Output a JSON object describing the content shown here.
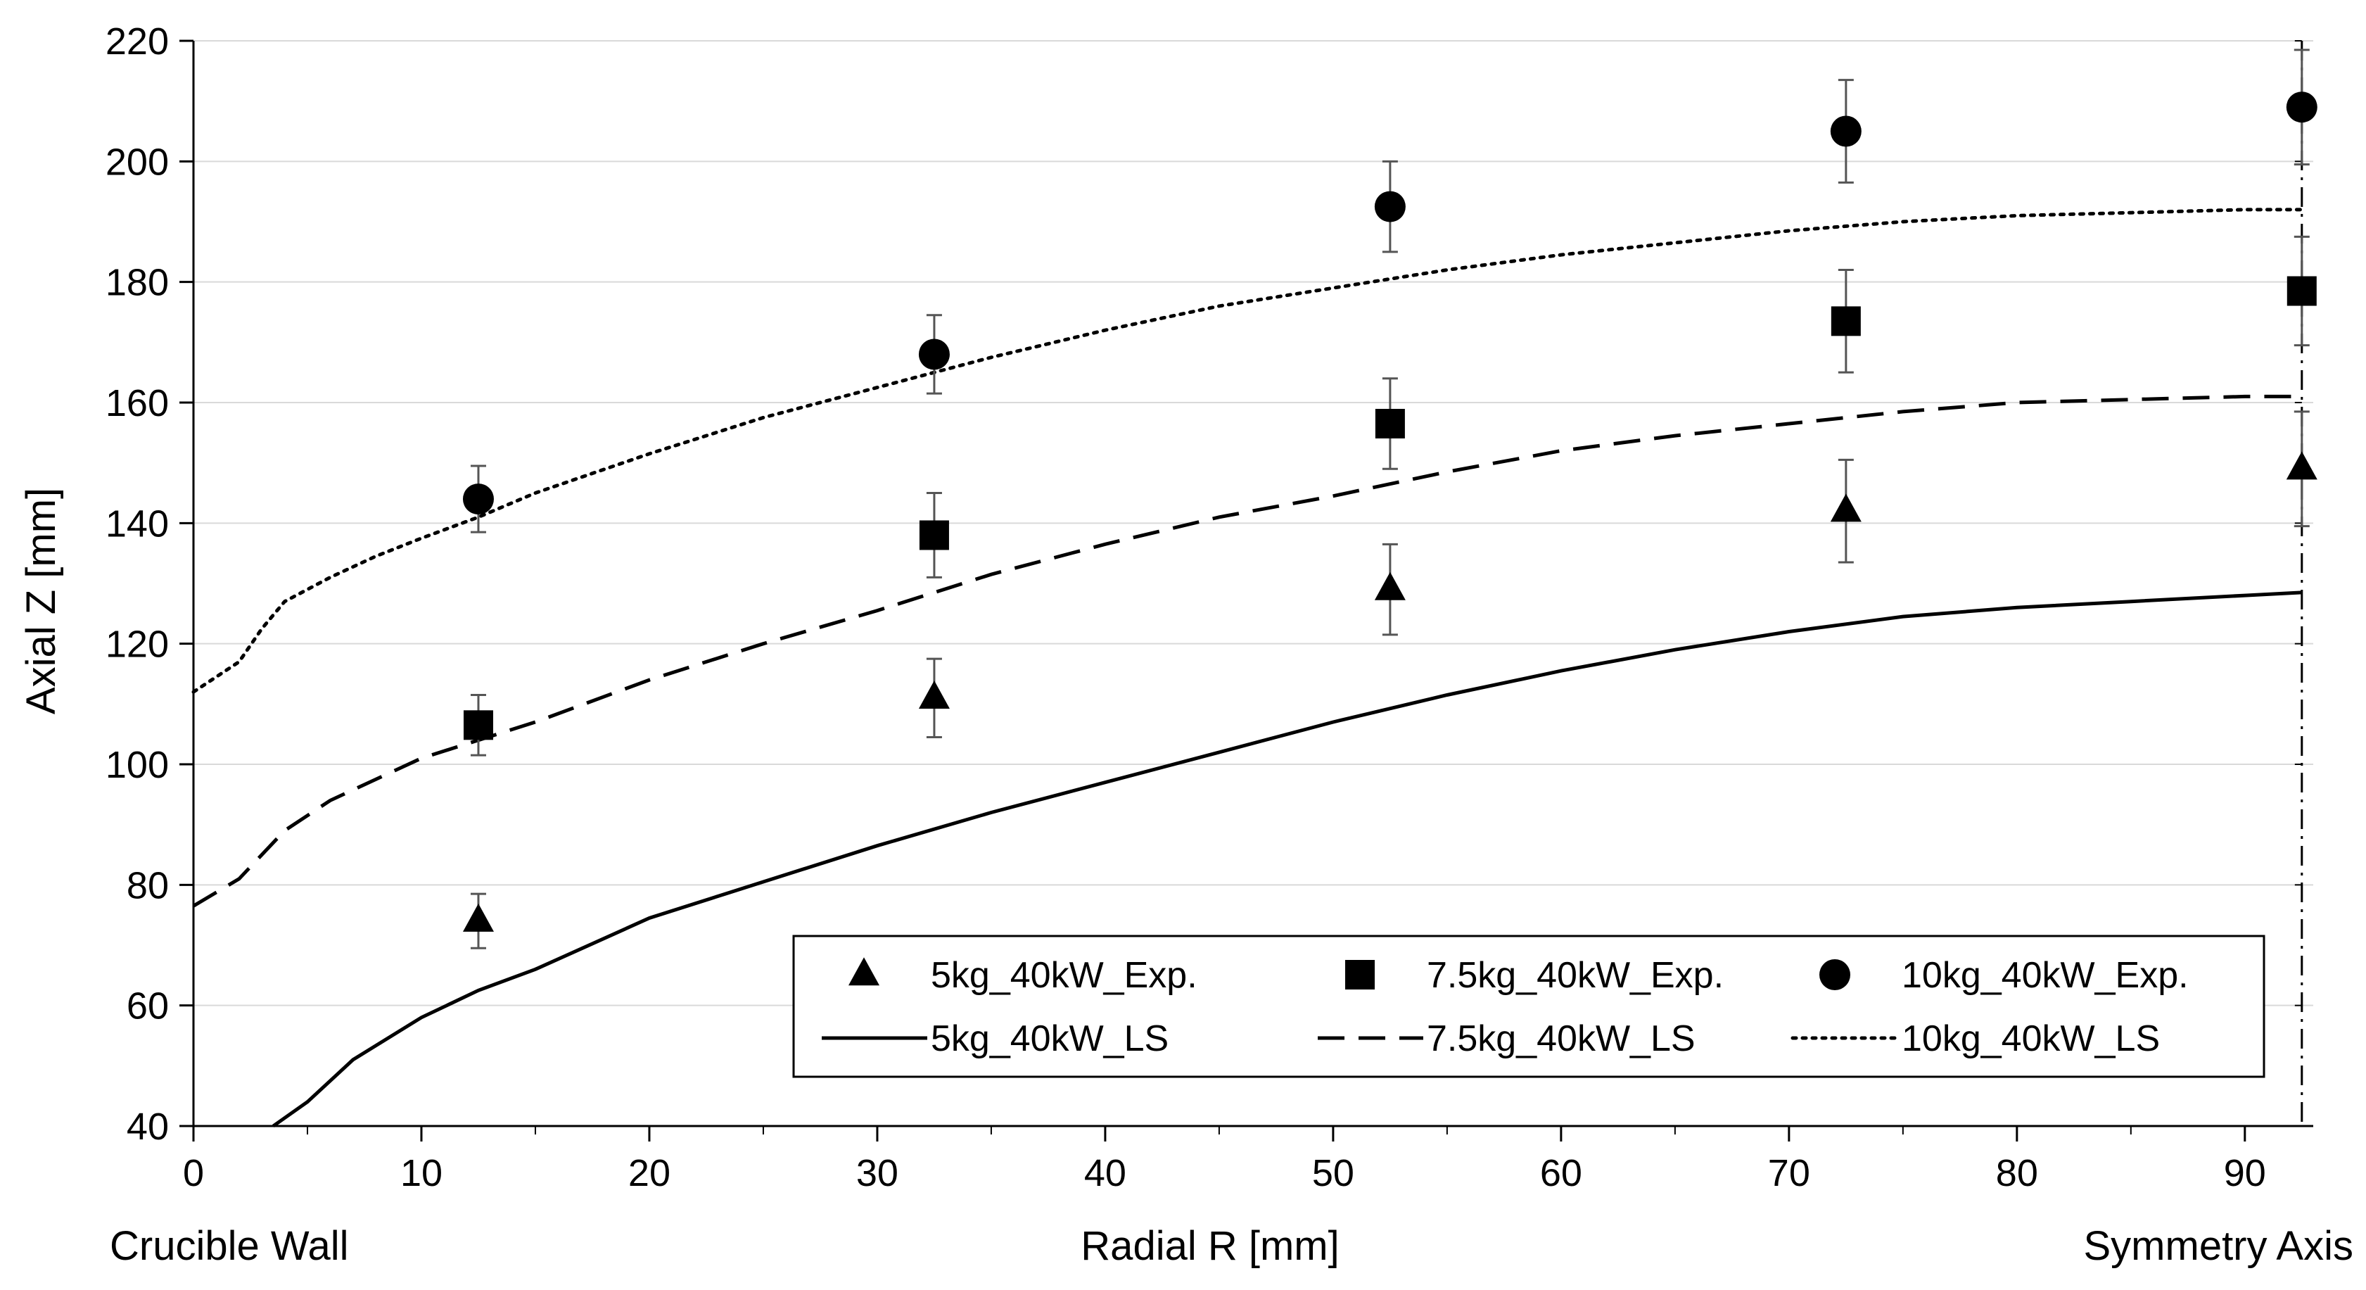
{
  "chart_data": {
    "type": "scatter",
    "title": "",
    "xlabel": "Radial R [mm]",
    "ylabel": "Axial Z [mm]",
    "xlim": [
      0,
      93
    ],
    "ylim": [
      40,
      220
    ],
    "x_ticks": [
      0,
      10,
      20,
      30,
      40,
      50,
      60,
      70,
      80,
      90
    ],
    "y_ticks": [
      40,
      60,
      80,
      100,
      120,
      140,
      160,
      180,
      200,
      220
    ],
    "x_end_labels": {
      "left": "Crucible Wall",
      "right": "Symmetry Axis"
    },
    "grid": "horizontal",
    "series": [
      {
        "name": "5kg_40kW_Exp.",
        "kind": "points",
        "marker": "triangle",
        "x": [
          12.5,
          32.5,
          52.5,
          72.5,
          92.5
        ],
        "y": [
          74,
          111,
          129,
          142,
          149
        ],
        "err": [
          4.5,
          6.5,
          7.5,
          8.5,
          9.5
        ]
      },
      {
        "name": "7.5kg_40kW_Exp.",
        "kind": "points",
        "marker": "square",
        "x": [
          12.5,
          32.5,
          52.5,
          72.5,
          92.5
        ],
        "y": [
          106.5,
          138,
          156.5,
          173.5,
          178.5
        ],
        "err": [
          5,
          7,
          7.5,
          8.5,
          9
        ]
      },
      {
        "name": "10kg_40kW_Exp.",
        "kind": "points",
        "marker": "circle",
        "x": [
          12.5,
          32.5,
          52.5,
          72.5,
          92.5
        ],
        "y": [
          144,
          168,
          192.5,
          205,
          209
        ],
        "err": [
          5.5,
          6.5,
          7.5,
          8.5,
          9.5
        ]
      },
      {
        "name": "5kg_40kW_LS",
        "kind": "line",
        "dash": "solid",
        "x": [
          3.5,
          5,
          7,
          10,
          12.5,
          15,
          20,
          25,
          30,
          35,
          40,
          45,
          50,
          55,
          60,
          65,
          70,
          75,
          80,
          85,
          90,
          92.5
        ],
        "y": [
          40,
          44,
          51,
          58,
          62.5,
          66,
          74.5,
          80.5,
          86.5,
          92,
          97,
          102,
          107,
          111.5,
          115.5,
          119,
          122,
          124.5,
          126,
          127,
          128,
          128.5
        ]
      },
      {
        "name": "7.5kg_40kW_LS",
        "kind": "line",
        "dash": "dashed",
        "x": [
          0,
          2,
          4,
          6,
          8,
          10,
          12.5,
          15,
          20,
          25,
          30,
          35,
          40,
          45,
          50,
          55,
          60,
          65,
          70,
          75,
          80,
          85,
          90,
          92.5
        ],
        "y": [
          76.5,
          81,
          89,
          94,
          97.5,
          101,
          104,
          107,
          114,
          120,
          125.5,
          131.5,
          136.5,
          141,
          144.5,
          148.5,
          152,
          154.5,
          156.5,
          158.5,
          160,
          160.5,
          161,
          161
        ]
      },
      {
        "name": "10kg_40kW_LS",
        "kind": "line",
        "dash": "dotted",
        "x": [
          0,
          2,
          3,
          4,
          6,
          8,
          10,
          12.5,
          15,
          20,
          25,
          30,
          35,
          40,
          45,
          50,
          55,
          60,
          65,
          70,
          75,
          80,
          85,
          90,
          92.5
        ],
        "y": [
          112,
          117,
          122.5,
          127,
          131,
          134.5,
          137.5,
          141,
          145,
          151.5,
          157.5,
          162.5,
          167.5,
          172,
          176,
          179,
          182,
          184.5,
          186.5,
          188.5,
          190,
          191,
          191.5,
          192,
          192
        ]
      }
    ],
    "annotations": [
      {
        "type": "vertical-line",
        "x": 92.5,
        "style": "dash-dot",
        "label": "Symmetry Axis"
      }
    ],
    "legend": {
      "position": "bottom-right",
      "columns": 3
    }
  }
}
